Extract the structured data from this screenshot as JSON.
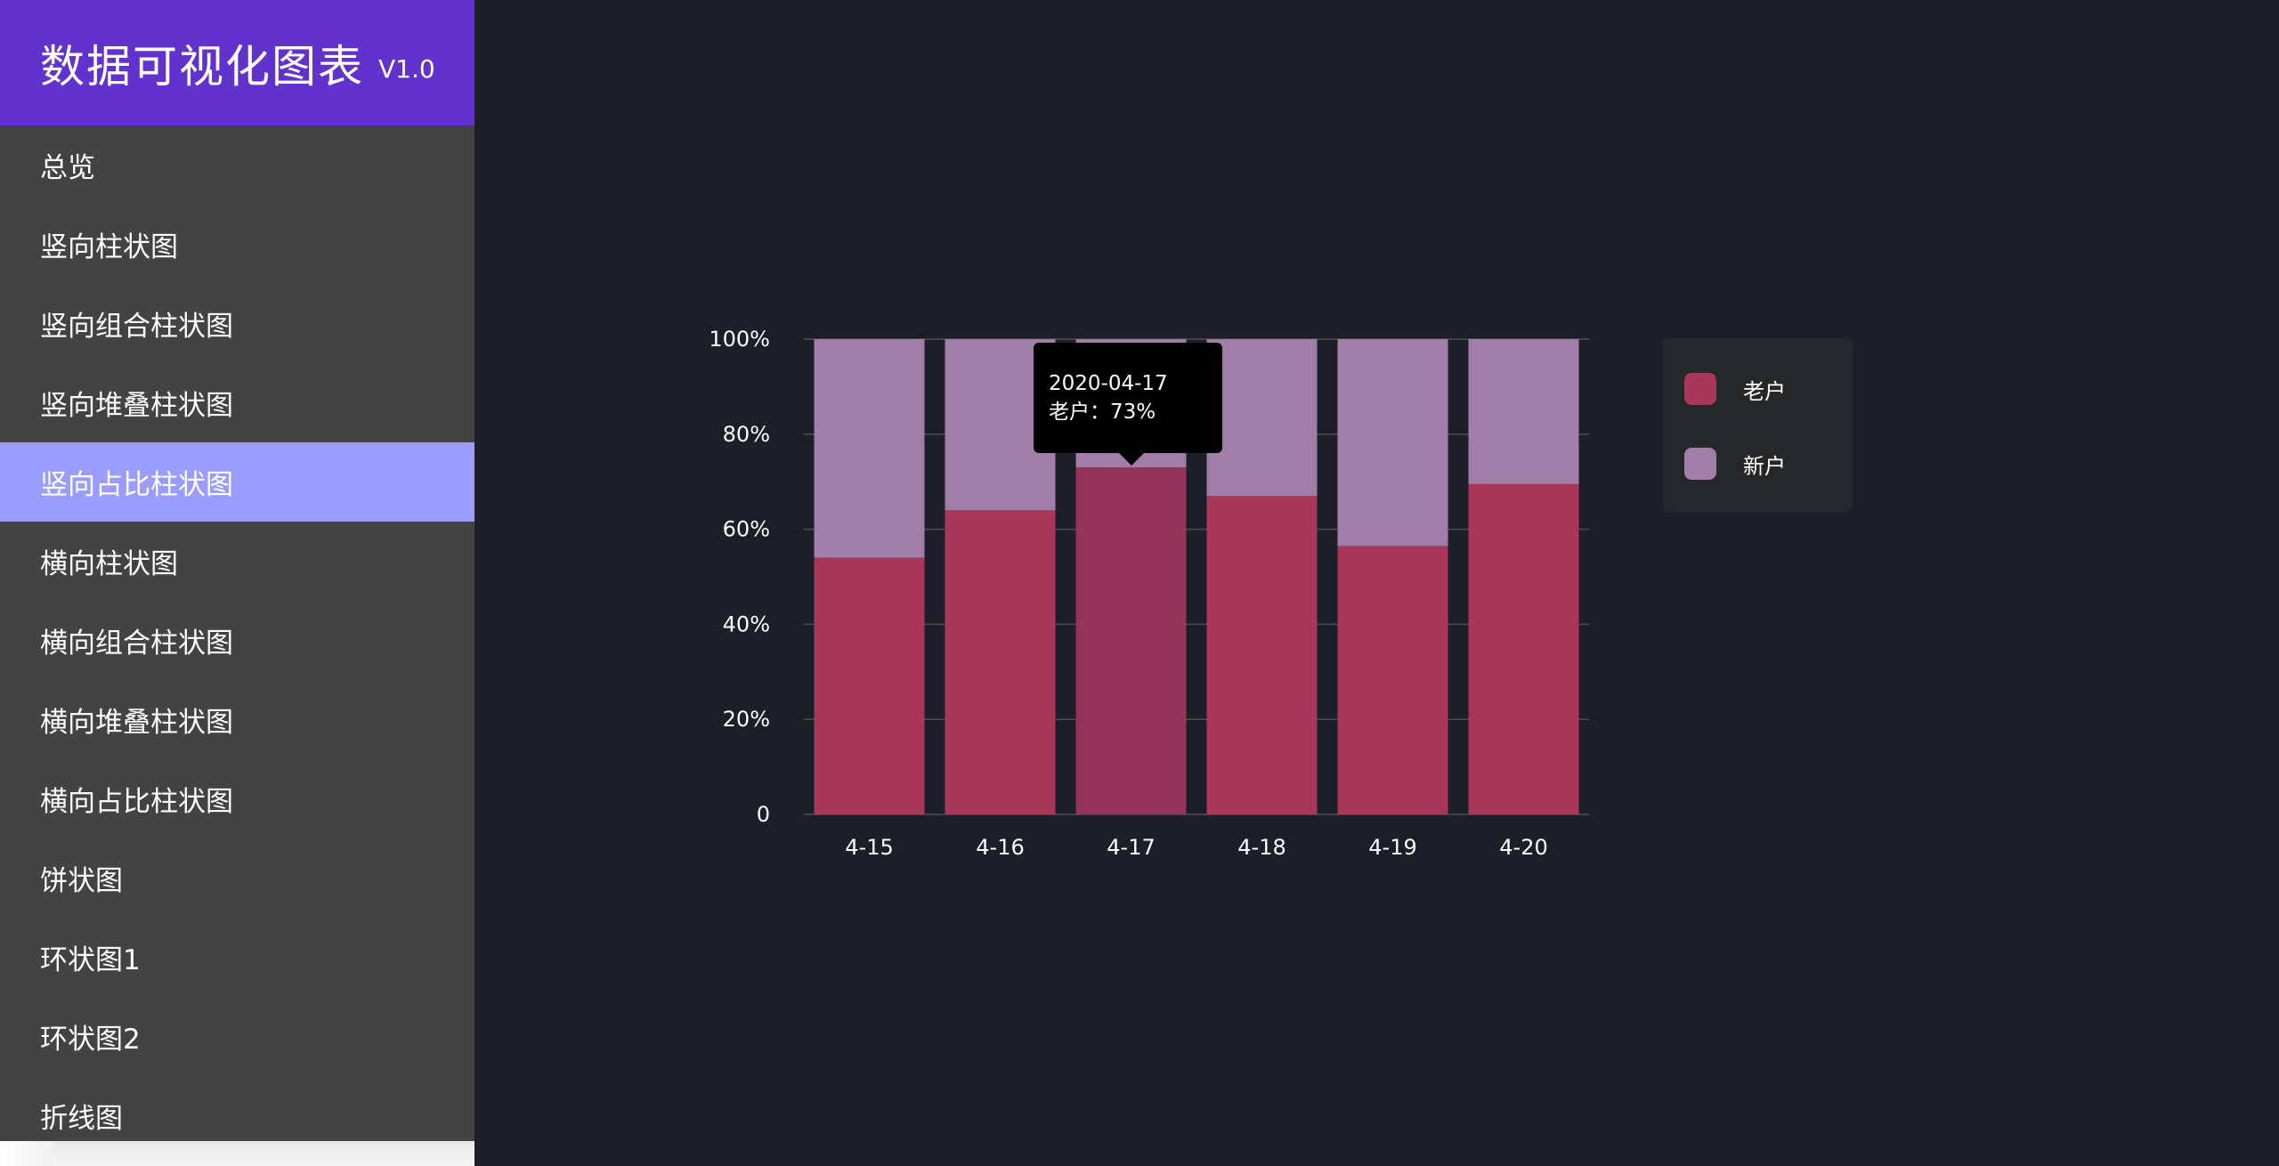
{
  "app": {
    "title": "数据可视化图表",
    "version": "V1.0"
  },
  "menu": [
    {
      "label": "总览",
      "active": false
    },
    {
      "label": "竖向柱状图",
      "active": false
    },
    {
      "label": "竖向组合柱状图",
      "active": false
    },
    {
      "label": "竖向堆叠柱状图",
      "active": false
    },
    {
      "label": "竖向占比柱状图",
      "active": true
    },
    {
      "label": "横向柱状图",
      "active": false
    },
    {
      "label": "横向组合柱状图",
      "active": false
    },
    {
      "label": "横向堆叠柱状图",
      "active": false
    },
    {
      "label": "横向占比柱状图",
      "active": false
    },
    {
      "label": "饼状图",
      "active": false
    },
    {
      "label": "环状图1",
      "active": false
    },
    {
      "label": "环状图2",
      "active": false
    },
    {
      "label": "折线图",
      "active": false
    }
  ],
  "tooltip": {
    "date": "2020-04-17",
    "line": "老户：73%"
  },
  "legend": [
    {
      "label": "老户",
      "color": "#a8375b"
    },
    {
      "label": "新户",
      "color": "#a07ea7"
    }
  ],
  "chart_data": {
    "type": "bar",
    "stacked": "percent",
    "categories": [
      "4-15",
      "4-16",
      "4-17",
      "4-18",
      "4-19",
      "4-20"
    ],
    "series": [
      {
        "name": "老户",
        "color": "#a8375b",
        "values": [
          54,
          64,
          73,
          67,
          56.5,
          69.5
        ]
      },
      {
        "name": "新户",
        "color": "#a07ea7",
        "values": [
          46,
          36,
          27,
          33,
          43.5,
          30.5
        ]
      }
    ],
    "y_ticks": [
      "0",
      "20%",
      "40%",
      "60%",
      "80%",
      "100%"
    ],
    "ylim": [
      0,
      100
    ],
    "highlighted_category": "4-17",
    "highlight_color": "#943557",
    "grid": true,
    "legend_position": "right"
  }
}
